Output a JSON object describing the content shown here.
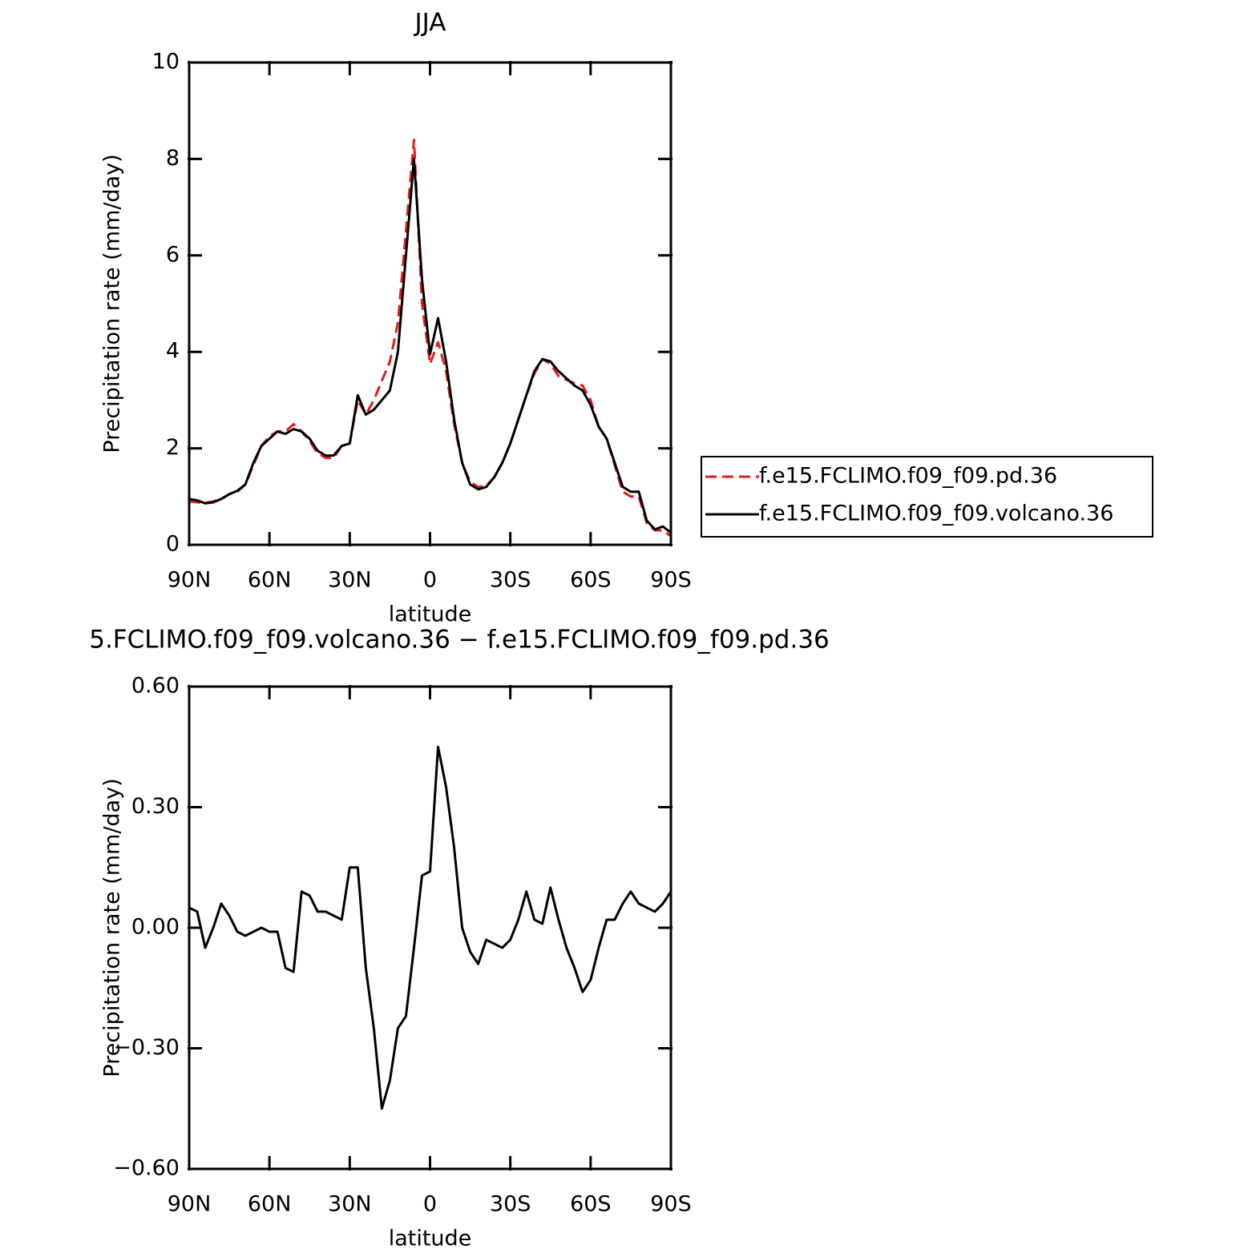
{
  "chart_data": [
    {
      "type": "line",
      "title": "JJA",
      "x_label": "latitude",
      "y_label": "Precipitation rate (mm/day)",
      "xlim": [
        90,
        -90
      ],
      "xticks": [
        {
          "value": 90,
          "label": "90N"
        },
        {
          "value": 60,
          "label": "60N"
        },
        {
          "value": 30,
          "label": "30N"
        },
        0,
        {
          "value": -30,
          "label": "30S"
        },
        {
          "value": -60,
          "label": "60S"
        },
        {
          "value": -90,
          "label": "90S"
        }
      ],
      "ylim": [
        0,
        10
      ],
      "yticks": [
        0,
        2,
        4,
        6,
        8,
        10
      ],
      "legend": "right",
      "x": [
        90,
        87,
        84,
        81,
        78,
        75,
        72,
        69,
        66,
        63,
        60,
        57,
        54,
        51,
        48,
        45,
        42,
        39,
        36,
        33,
        30,
        27,
        24,
        21,
        18,
        15,
        12,
        9,
        6,
        3,
        0,
        -3,
        -6,
        -9,
        -12,
        -15,
        -18,
        -21,
        -24,
        -27,
        -30,
        -33,
        -36,
        -39,
        -42,
        -45,
        -48,
        -51,
        -54,
        -57,
        -60,
        -63,
        -66,
        -69,
        -72,
        -75,
        -78,
        -81,
        -84,
        -87,
        -90
      ],
      "series": [
        {
          "name": "f.e15.FCLIMO.f09_f09.pd.36",
          "color": "#e41a1c",
          "dash": "dashed",
          "values": [
            0.9,
            0.88,
            0.87,
            0.9,
            0.95,
            1.05,
            1.1,
            1.25,
            1.65,
            2.05,
            2.25,
            2.35,
            2.35,
            2.5,
            2.35,
            2.15,
            1.9,
            1.8,
            1.8,
            2.05,
            2.1,
            3.0,
            2.7,
            3.0,
            3.4,
            3.8,
            4.6,
            6.5,
            8.4,
            5.0,
            3.75,
            4.2,
            3.6,
            2.5,
            1.7,
            1.3,
            1.2,
            1.22,
            1.4,
            1.7,
            2.1,
            2.6,
            3.1,
            3.55,
            3.85,
            3.75,
            3.5,
            3.42,
            3.35,
            3.3,
            3.0,
            2.45,
            2.2,
            1.65,
            1.1,
            1.0,
            1.0,
            0.45,
            0.3,
            0.3,
            0.18
          ]
        },
        {
          "name": "f.e15.FCLIMO.f09_f09.volcano.36",
          "color": "#000000",
          "dash": "solid",
          "values": [
            0.95,
            0.92,
            0.86,
            0.88,
            0.95,
            1.05,
            1.12,
            1.25,
            1.7,
            2.05,
            2.2,
            2.35,
            2.3,
            2.4,
            2.35,
            2.2,
            1.95,
            1.85,
            1.85,
            2.05,
            2.1,
            3.1,
            2.7,
            2.8,
            3.0,
            3.2,
            4.0,
            6.0,
            8.0,
            5.5,
            3.95,
            4.7,
            3.8,
            2.6,
            1.7,
            1.25,
            1.15,
            1.2,
            1.4,
            1.7,
            2.1,
            2.6,
            3.1,
            3.6,
            3.85,
            3.8,
            3.6,
            3.45,
            3.3,
            3.2,
            2.9,
            2.45,
            2.2,
            1.7,
            1.2,
            1.1,
            1.1,
            0.5,
            0.32,
            0.38,
            0.25
          ]
        }
      ]
    },
    {
      "type": "line",
      "title": "5.FCLIMO.f09_f09.volcano.36 − f.e15.FCLIMO.f09_f09.pd.36",
      "x_label": "latitude",
      "y_label": "Precipitation rate (mm/day)",
      "xlim": [
        90,
        -90
      ],
      "xticks": [
        {
          "value": 90,
          "label": "90N"
        },
        {
          "value": 60,
          "label": "60N"
        },
        {
          "value": 30,
          "label": "30N"
        },
        0,
        {
          "value": -30,
          "label": "30S"
        },
        {
          "value": -60,
          "label": "60S"
        },
        {
          "value": -90,
          "label": "90S"
        }
      ],
      "ylim": [
        -0.6,
        0.6
      ],
      "yticks": [
        {
          "value": -0.6,
          "label": "−0.60"
        },
        {
          "value": -0.3,
          "label": "−0.30"
        },
        {
          "value": 0,
          "label": "0.00"
        },
        {
          "value": 0.3,
          "label": "0.30"
        },
        {
          "value": 0.6,
          "label": "0.60"
        }
      ],
      "x": [
        90,
        87,
        84,
        81,
        78,
        75,
        72,
        69,
        66,
        63,
        60,
        57,
        54,
        51,
        48,
        45,
        42,
        39,
        36,
        33,
        30,
        27,
        24,
        21,
        18,
        15,
        12,
        9,
        6,
        3,
        0,
        -3,
        -6,
        -9,
        -12,
        -15,
        -18,
        -21,
        -24,
        -27,
        -30,
        -33,
        -36,
        -39,
        -42,
        -45,
        -48,
        -51,
        -54,
        -57,
        -60,
        -63,
        -66,
        -69,
        -72,
        -75,
        -78,
        -81,
        -84,
        -87,
        -90
      ],
      "series": [
        {
          "color": "#000000",
          "dash": "solid",
          "values": [
            0.05,
            0.04,
            -0.05,
            0.0,
            0.06,
            0.03,
            -0.01,
            -0.02,
            -0.01,
            0.0,
            -0.01,
            -0.01,
            -0.1,
            -0.11,
            0.09,
            0.08,
            0.04,
            0.04,
            0.03,
            0.02,
            0.15,
            0.15,
            -0.1,
            -0.25,
            -0.45,
            -0.38,
            -0.25,
            -0.22,
            -0.05,
            0.13,
            0.14,
            0.45,
            0.35,
            0.2,
            0.0,
            -0.06,
            -0.09,
            -0.03,
            -0.04,
            -0.05,
            -0.03,
            0.02,
            0.09,
            0.02,
            0.01,
            0.1,
            0.02,
            -0.05,
            -0.1,
            -0.16,
            -0.13,
            -0.05,
            0.02,
            0.02,
            0.06,
            0.09,
            0.06,
            0.05,
            0.04,
            0.06,
            0.09
          ]
        }
      ]
    }
  ]
}
